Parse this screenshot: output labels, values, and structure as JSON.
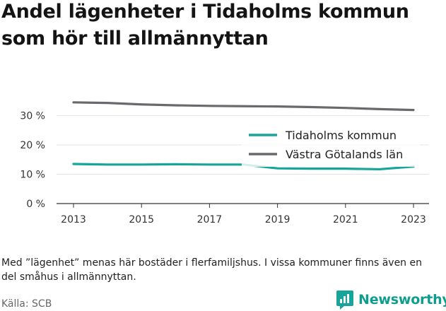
{
  "title": "Andel lägenheter i Tidaholms kommun som hör till allmännyttan",
  "note": "Med ”lägenhet” menas här bostäder i flerfamiljshus. I vissa kommuner finns även en del småhus i allmännyttan.",
  "source": "Källa: SCB",
  "brand": {
    "name": "Newsworthy",
    "icon": "newsworthy-logo-icon"
  },
  "colors": {
    "tidaholm": "#17a59b",
    "vastra": "#6a6a6e",
    "grid": "#e4e4e4",
    "axis": "#333333"
  },
  "chart_data": {
    "type": "line",
    "x": [
      2013,
      2014,
      2015,
      2016,
      2017,
      2018,
      2019,
      2020,
      2021,
      2022,
      2023
    ],
    "x_ticks": [
      "2013",
      "2015",
      "2017",
      "2019",
      "2021",
      "2023"
    ],
    "y_ticks": [
      "0 %",
      "10 %",
      "20 %",
      "30 %"
    ],
    "ylim": [
      0,
      35
    ],
    "grid": true,
    "legend_position": "right",
    "series": [
      {
        "name": "Tidaholms kommun",
        "color": "#17a59b",
        "values": [
          13.5,
          13.3,
          13.3,
          13.4,
          13.3,
          13.3,
          12.0,
          11.9,
          11.9,
          11.7,
          12.6
        ]
      },
      {
        "name": "Västra Götalands län",
        "color": "#6a6a6e",
        "values": [
          34.5,
          34.3,
          33.8,
          33.5,
          33.3,
          33.2,
          33.1,
          32.9,
          32.6,
          32.2,
          31.9
        ]
      }
    ]
  }
}
